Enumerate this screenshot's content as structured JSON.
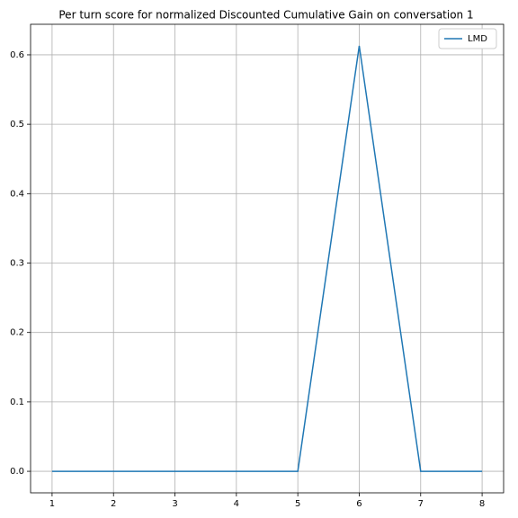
{
  "chart_data": {
    "type": "line",
    "title": "Per turn score for normalized Discounted Cumulative Gain on conversation 1",
    "x": [
      1,
      2,
      3,
      4,
      5,
      6,
      7,
      8
    ],
    "series": [
      {
        "name": "LMD",
        "color": "#1f77b4",
        "values": [
          0,
          0,
          0,
          0,
          0,
          0.613,
          0,
          0
        ]
      }
    ],
    "xlim": [
      0.65,
      8.35
    ],
    "xticks": [
      1,
      2,
      3,
      4,
      5,
      6,
      7,
      8
    ],
    "ylim": [
      -0.031,
      0.644
    ],
    "yticks": [
      {
        "value": 0,
        "label": "0.0"
      },
      0.1,
      0.2,
      0.3,
      0.4,
      0.5,
      0.6
    ],
    "grid": true,
    "legend": "upper-right"
  }
}
